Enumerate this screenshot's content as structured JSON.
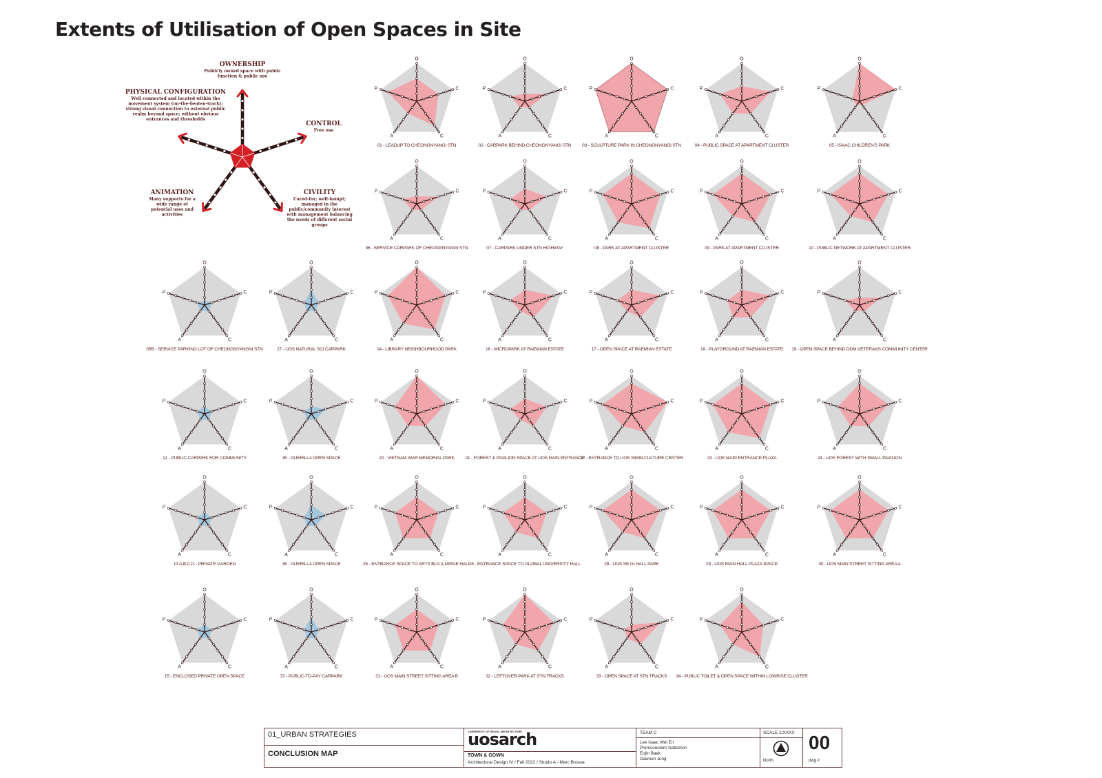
{
  "title": "Extents of Utilisation of Open Spaces in Site",
  "legend": {
    "axes": [
      {
        "key": "O",
        "heading": "OWNERSHIP",
        "desc": [
          "Publicly owned space with public",
          "function & public use"
        ]
      },
      {
        "key": "C1",
        "heading": "CONTROL",
        "desc": [
          "Free use"
        ]
      },
      {
        "key": "C2",
        "heading": "CIVILITY",
        "desc": [
          "Cared-for; well-kempt;",
          "managed in the",
          "public/community interest",
          "with management balancing",
          "the needs of different social",
          "groups"
        ]
      },
      {
        "key": "A",
        "heading": "ANIMATION",
        "desc": [
          "Many supports for a",
          "wide range of",
          "potential uses and",
          "activities"
        ]
      },
      {
        "key": "P",
        "heading": "PHYSICAL CONFIGURATION",
        "desc": [
          "Well connected and located within the",
          "movement system (on-the-beaten-track);",
          "strong visual connection to external public",
          "realm beyond space; without obvious",
          "entrances and thresholds"
        ]
      }
    ]
  },
  "axis_letters": [
    "O",
    "C",
    "C",
    "A",
    "P"
  ],
  "colors": {
    "high_fill": "#f2a0a4",
    "low_fill": "#9cc4dc",
    "background_pentagon": "#d9d9d9",
    "axis_line": "#2e1414",
    "legend_core": "#d42025",
    "label_text": "#5a1e1e"
  },
  "chart_data": {
    "type": "radar",
    "axes": [
      "O",
      "C",
      "C",
      "A",
      "P"
    ],
    "scale": [
      0,
      5
    ],
    "items": [
      {
        "label": "01 - LEADUP TO CHEONGNYANGI STN",
        "values": [
          3,
          3,
          4,
          2,
          4
        ],
        "color": "pink"
      },
      {
        "label": "02 - CARPARK BEHIND CHEONGNYANGI STN",
        "values": [
          1,
          3,
          1,
          1,
          2
        ],
        "color": "pink"
      },
      {
        "label": "03 - SCULPTURE PARK IN CHEONGNYANGI STN",
        "values": [
          5,
          5,
          5,
          5,
          5
        ],
        "color": "pink"
      },
      {
        "label": "04 - PUBLIC SPACE AT APARTMENT CLUSTER",
        "values": [
          2,
          4,
          2,
          2,
          3
        ],
        "color": "pink"
      },
      {
        "label": "05 - ISAAC CHILDREN'S PARK",
        "values": [
          5,
          5,
          0,
          0,
          1
        ],
        "color": "pink"
      },
      {
        "label": "06 - SERVICE CARPARK OF CHEONGNYANGI STN",
        "values": [
          1,
          3,
          1,
          1,
          2
        ],
        "color": "pink"
      },
      {
        "label": "07 - CARPARK UNDER STN HIGHWAY",
        "values": [
          2,
          3,
          1,
          1,
          2
        ],
        "color": "pink"
      },
      {
        "label": "08 - PARK AT APARTMENT CLUSTER",
        "values": [
          4,
          4,
          4,
          3,
          4
        ],
        "color": "pink"
      },
      {
        "label": "09 - PARK AT APARTMENT CLUSTER",
        "values": [
          4,
          4,
          3,
          2,
          4
        ],
        "color": "pink"
      },
      {
        "label": "10 - PUBLIC NETWORK AT APARTMENT CLUSTER",
        "values": [
          4,
          4,
          3,
          2,
          4
        ],
        "color": "pink"
      },
      {
        "label": "05B - SERVICE PARKING LOT OF CHEONGNYANGNI STN",
        "values": [
          0,
          1,
          1,
          1,
          1
        ],
        "color": "blue"
      },
      {
        "label": "27 - UOS NATURAL SCI CARPARK",
        "values": [
          2,
          1,
          1,
          1,
          1
        ],
        "color": "blue"
      },
      {
        "label": "14 - LIBRARY NEIGHBOURHOOD PARK",
        "values": [
          5,
          4,
          4,
          3,
          4
        ],
        "color": "pink"
      },
      {
        "label": "16 - MICROPARK AT RAEMIAN ESTATE",
        "values": [
          2,
          4,
          2,
          1,
          2
        ],
        "color": "pink"
      },
      {
        "label": "17 - OPEN SPACE AT RAEMIAN ESTATE",
        "values": [
          2,
          4,
          2,
          1,
          2
        ],
        "color": "pink"
      },
      {
        "label": "18 - PLAYGROUND AT RAEMIAN ESTATE",
        "values": [
          2,
          4,
          2,
          2,
          2
        ],
        "color": "pink"
      },
      {
        "label": "19 - OPEN SPACE BEHIND DDM VETERANS COMMUNITY CENTER",
        "values": [
          1,
          3,
          1,
          1,
          2
        ],
        "color": "pink"
      },
      {
        "label": "12 - PUBLIC CARPARK FOR COMMUNITY",
        "values": [
          1,
          1,
          1,
          1,
          1
        ],
        "color": "blue"
      },
      {
        "label": "35 - GUERILLA OPEN SPACE",
        "values": [
          1,
          2,
          1,
          1,
          1
        ],
        "color": "blue"
      },
      {
        "label": "20 - VIETNAM WAR MEMORIAL PARK",
        "values": [
          5,
          4,
          2,
          2,
          3
        ],
        "color": "pink"
      },
      {
        "label": "21 - FOREST & PAVILION SPACE AT UOS MAIN ENTRANCE",
        "values": [
          2,
          3,
          2,
          1,
          2
        ],
        "color": "pink"
      },
      {
        "label": "22 - ENTRANCE TO UOS SIMIN CULTURE CENTER",
        "values": [
          4,
          5,
          3,
          2,
          4
        ],
        "color": "pink"
      },
      {
        "label": "23 - UOS MAIN ENTRANCE PLAZA",
        "values": [
          4,
          4,
          4,
          3,
          4
        ],
        "color": "pink"
      },
      {
        "label": "24 - UOS FOREST WITH SMALL PAVILION",
        "values": [
          4,
          4,
          2,
          2,
          3
        ],
        "color": "pink"
      },
      {
        "label": "13 A,B,C,D - PRIVATE GARDEN",
        "values": [
          1,
          1,
          1,
          1,
          1
        ],
        "color": "blue"
      },
      {
        "label": "36 - GUERILLA OPEN SPACE",
        "values": [
          2,
          2,
          1,
          1,
          1
        ],
        "color": "blue"
      },
      {
        "label": "25 - ENTRANCE SPACE TO ARTS BLD & MIRAE HALL",
        "values": [
          3,
          3,
          3,
          3,
          3
        ],
        "color": "pink"
      },
      {
        "label": "26 - ENTRANCE SPACE TO GLOBAL UNIVERSITY HALL",
        "values": [
          3,
          3,
          3,
          2,
          3
        ],
        "color": "pink"
      },
      {
        "label": "28 - UOS SE GI HALL PARK",
        "values": [
          4,
          4,
          3,
          2,
          4
        ],
        "color": "pink"
      },
      {
        "label": "29 - UOS MAIN HALL PLAZA SPACE",
        "values": [
          4,
          4,
          3,
          3,
          4
        ],
        "color": "pink"
      },
      {
        "label": "30 - UOS MAIN STREET SITTING AREA A",
        "values": [
          4,
          4,
          3,
          3,
          4
        ],
        "color": "pink"
      },
      {
        "label": "15 - ENCLOSED PRIVATE OPEN SPACE",
        "values": [
          1,
          1,
          1,
          1,
          1
        ],
        "color": "blue"
      },
      {
        "label": "37 - PUBLIC-TO-PAY CARPARK",
        "values": [
          2,
          1,
          1,
          1,
          1
        ],
        "color": "blue"
      },
      {
        "label": "31 - UOS MAIN STREET SITTING AREA B",
        "values": [
          3,
          3,
          3,
          3,
          3
        ],
        "color": "pink"
      },
      {
        "label": "32 - LEFTOVER PARK AT STN TRACKS",
        "values": [
          5,
          4,
          3,
          2,
          3
        ],
        "color": "pink"
      },
      {
        "label": "33 - OPEN SPACE AT STN TRACKS",
        "values": [
          1,
          4,
          2,
          1,
          1
        ],
        "color": "pink"
      },
      {
        "label": "34 - PUBLIC TOILET & OPEN SPACE WITHIN LOWRISE CLUSTER",
        "values": [
          4,
          3,
          4,
          2,
          3
        ],
        "color": "pink"
      }
    ]
  },
  "title_block": {
    "project": "01_URBAN STRATEGIES",
    "drawing_title": "CONCLUSION MAP",
    "logo_small": "UNIVERSITY OF SEOUL ARCHITECTURE",
    "logo": "uosarch",
    "course_title": "TOWN & GOWN",
    "course_detail": "Architectural Design IV / Fall 2022 / Studio A - Marc Brossa",
    "team_label": "TEAM C",
    "members": [
      "Lee Isaac Wei En",
      "Premsoontorn Nattamon",
      "Eojin Baek",
      "Dawoon Jung"
    ],
    "scale": "SCALE 1/XXXX",
    "north": "North",
    "dwg_label": "dwg #",
    "dwg_number": "00"
  }
}
